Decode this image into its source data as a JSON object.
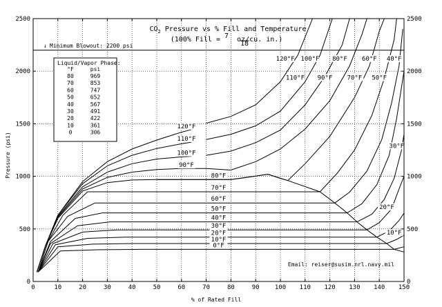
{
  "chart_data": {
    "type": "line",
    "title_prefix": "CO",
    "title_sub": "2",
    "title_suffix": " Pressure vs % Fill and Temperature",
    "subtitle_prefix": "(100% Fill = ",
    "subtitle_num": "7",
    "subtitle_den": "18",
    "subtitle_suffix": " oz/cu. in.)",
    "xlabel": "% of Rated Fill",
    "ylabel": "Pressure (psi)",
    "xlim": [
      0,
      150
    ],
    "ylim": [
      0,
      2500
    ],
    "x_ticks": [
      "0",
      "10",
      "20",
      "30",
      "40",
      "50",
      "60",
      "70",
      "80",
      "90",
      "100",
      "110",
      "120",
      "130",
      "140",
      "150"
    ],
    "y_ticks": [
      "0",
      "500",
      "1000",
      "1500",
      "2000",
      "2500"
    ],
    "grid": true,
    "blowout": {
      "value": 2200,
      "label": "Minimum Blowout: 2200 psi",
      "arrow": "↓"
    },
    "table": {
      "title": "Liquid/Vapor Phase:",
      "headers": [
        "°F",
        "psi"
      ],
      "rows": [
        [
          "80",
          "969"
        ],
        [
          "70",
          "853"
        ],
        [
          "60",
          "747"
        ],
        [
          "50",
          "652"
        ],
        [
          "40",
          "567"
        ],
        [
          "30",
          "491"
        ],
        [
          "20",
          "422"
        ],
        [
          "10",
          "361"
        ],
        [
          "0",
          "306"
        ]
      ]
    },
    "email": "Email: reiser@susim.nrl.navy.mil",
    "series": [
      {
        "name": "120°F",
        "plateau_label": "120°F",
        "high_label": "120°F",
        "points": [
          [
            1.5,
            90
          ],
          [
            5,
            340
          ],
          [
            10,
            630
          ],
          [
            20,
            950
          ],
          [
            30,
            1140
          ],
          [
            40,
            1260
          ],
          [
            50,
            1345
          ],
          [
            60,
            1420
          ],
          [
            64,
            1445
          ]
        ],
        "branch": [
          [
            70,
            1505
          ],
          [
            80,
            1570
          ],
          [
            90,
            1680
          ],
          [
            100,
            1900
          ],
          [
            107,
            2150
          ],
          [
            113,
            2500
          ]
        ]
      },
      {
        "name": "110°F",
        "plateau_label": "110°F",
        "high_label": "110°F",
        "points": [
          [
            1.5,
            90
          ],
          [
            5,
            340
          ],
          [
            10,
            630
          ],
          [
            20,
            930
          ],
          [
            30,
            1100
          ],
          [
            40,
            1200
          ],
          [
            50,
            1265
          ],
          [
            60,
            1310
          ],
          [
            64,
            1325
          ]
        ],
        "branch": [
          [
            70,
            1350
          ],
          [
            80,
            1400
          ],
          [
            90,
            1480
          ],
          [
            100,
            1620
          ],
          [
            110,
            1900
          ],
          [
            116,
            2150
          ],
          [
            121,
            2500
          ]
        ]
      },
      {
        "name": "100°F",
        "plateau_label": "100°F",
        "high_label": "100°F",
        "points": [
          [
            1.5,
            90
          ],
          [
            5,
            340
          ],
          [
            10,
            620
          ],
          [
            20,
            900
          ],
          [
            30,
            1040
          ],
          [
            40,
            1120
          ],
          [
            50,
            1165
          ],
          [
            60,
            1185
          ],
          [
            64,
            1190
          ]
        ],
        "branch": [
          [
            70,
            1200
          ],
          [
            80,
            1240
          ],
          [
            90,
            1320
          ],
          [
            100,
            1440
          ],
          [
            110,
            1680
          ],
          [
            118,
            1950
          ],
          [
            125,
            2250
          ],
          [
            128,
            2500
          ]
        ]
      },
      {
        "name": "90°F",
        "plateau_label": "90°F",
        "high_label": "90°F",
        "points": [
          [
            1.5,
            90
          ],
          [
            5,
            340
          ],
          [
            10,
            610
          ],
          [
            20,
            880
          ],
          [
            30,
            990
          ],
          [
            40,
            1040
          ],
          [
            50,
            1065
          ],
          [
            60,
            1075
          ],
          [
            70,
            1075
          ],
          [
            80,
            1060
          ]
        ],
        "branch": [
          [
            80,
            1060
          ],
          [
            90,
            1140
          ],
          [
            100,
            1260
          ],
          [
            110,
            1450
          ],
          [
            120,
            1720
          ],
          [
            128,
            2050
          ],
          [
            133,
            2350
          ],
          [
            135,
            2500
          ]
        ]
      },
      {
        "name": "80°F",
        "plateau_label": "80°F",
        "high_label": "80°F",
        "points": [
          [
            1.5,
            90
          ],
          [
            5,
            340
          ],
          [
            10,
            600
          ],
          [
            20,
            860
          ],
          [
            30,
            940
          ],
          [
            40,
            965
          ],
          [
            50,
            969
          ],
          [
            80,
            969
          ],
          [
            85,
            985
          ],
          [
            95,
            1020
          ],
          [
            100,
            980
          ],
          [
            103,
            960
          ]
        ],
        "branch": [
          [
            103,
            960
          ],
          [
            110,
            1120
          ],
          [
            120,
            1380
          ],
          [
            130,
            1750
          ],
          [
            136,
            2050
          ],
          [
            140,
            2380
          ],
          [
            142,
            2500
          ]
        ]
      },
      {
        "name": "70°F",
        "plateau_label": "70°F",
        "high_label": "70°F",
        "points": [
          [
            2,
            90
          ],
          [
            6,
            380
          ],
          [
            12,
            630
          ],
          [
            22,
            853
          ],
          [
            116,
            853
          ]
        ],
        "branch": [
          [
            116,
            853
          ],
          [
            123,
            1030
          ],
          [
            130,
            1250
          ],
          [
            137,
            1580
          ],
          [
            142,
            1930
          ],
          [
            146,
            2300
          ],
          [
            147,
            2500
          ]
        ]
      },
      {
        "name": "60°F",
        "plateau_label": "60°F",
        "high_label": "60°F",
        "points": [
          [
            2,
            90
          ],
          [
            6,
            380
          ],
          [
            14,
            620
          ],
          [
            25,
            747
          ],
          [
            122,
            747
          ]
        ],
        "branch": [
          [
            122,
            747
          ],
          [
            128,
            850
          ],
          [
            135,
            1050
          ],
          [
            141,
            1350
          ],
          [
            145,
            1700
          ],
          [
            148,
            2050
          ],
          [
            149.5,
            2400
          ]
        ]
      },
      {
        "name": "50°F",
        "plateau_label": "50°F",
        "high_label": "50°F",
        "points": [
          [
            2,
            90
          ],
          [
            7,
            380
          ],
          [
            17,
            600
          ],
          [
            28,
            652
          ],
          [
            127,
            652
          ]
        ],
        "branch": [
          [
            127,
            652
          ],
          [
            133,
            740
          ],
          [
            139,
            920
          ],
          [
            144,
            1200
          ],
          [
            147,
            1550
          ],
          [
            149,
            1850
          ],
          [
            150,
            2000
          ]
        ]
      },
      {
        "name": "40°F",
        "plateau_label": "40°F",
        "high_label": "40°F",
        "points": [
          [
            2,
            90
          ],
          [
            7,
            360
          ],
          [
            18,
            530
          ],
          [
            31,
            567
          ],
          [
            131,
            567
          ]
        ],
        "branch": [
          [
            131,
            567
          ],
          [
            137,
            640
          ],
          [
            142,
            780
          ],
          [
            146,
            980
          ],
          [
            149,
            1250
          ],
          [
            150,
            1400
          ]
        ]
      },
      {
        "name": "30°F",
        "plateau_label": "30°F",
        "high_label": "30°F",
        "points": [
          [
            2,
            90
          ],
          [
            8,
            360
          ],
          [
            20,
            470
          ],
          [
            34,
            491
          ],
          [
            135,
            491
          ]
        ],
        "branch": [
          [
            135,
            491
          ],
          [
            140,
            560
          ],
          [
            145,
            690
          ],
          [
            148,
            880
          ],
          [
            150,
            1000
          ]
        ]
      },
      {
        "name": "20°F",
        "plateau_label": "20°F",
        "high_label": "20°F",
        "points": [
          [
            2,
            90
          ],
          [
            9,
            350
          ],
          [
            22,
            410
          ],
          [
            37,
            422
          ],
          [
            139,
            422
          ]
        ],
        "branch": [
          [
            139,
            422
          ],
          [
            144,
            480
          ],
          [
            148,
            580
          ],
          [
            150,
            650
          ]
        ]
      },
      {
        "name": "10°F",
        "plateau_label": "10°F",
        "high_label": "10°F",
        "points": [
          [
            2,
            90
          ],
          [
            10,
            330
          ],
          [
            24,
            355
          ],
          [
            40,
            361
          ],
          [
            143,
            361
          ]
        ],
        "branch": [
          [
            143,
            361
          ],
          [
            147,
            400
          ],
          [
            150,
            440
          ]
        ]
      },
      {
        "name": "0°F",
        "plateau_label": "0°F",
        "high_label": "",
        "points": [
          [
            2,
            90
          ],
          [
            11,
            290
          ],
          [
            26,
            302
          ],
          [
            44,
            306
          ],
          [
            146,
            306
          ]
        ],
        "branch": [
          [
            146,
            306
          ],
          [
            150,
            330
          ]
        ]
      }
    ],
    "saturation_curve": [
      [
        50,
        969
      ],
      [
        80,
        969
      ],
      [
        95,
        1020
      ],
      [
        103,
        960
      ],
      [
        116,
        853
      ],
      [
        122,
        747
      ],
      [
        127,
        652
      ],
      [
        131,
        567
      ],
      [
        135,
        491
      ],
      [
        139,
        422
      ],
      [
        143,
        361
      ],
      [
        146,
        306
      ],
      [
        150,
        280
      ]
    ]
  }
}
